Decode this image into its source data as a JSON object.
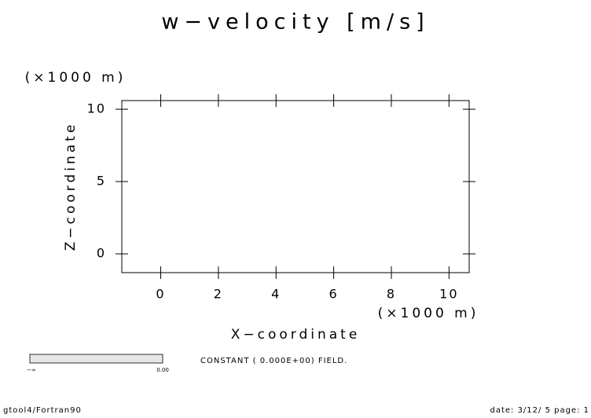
{
  "chart_data": {
    "type": "contour",
    "title": "w−velocity [m/s]",
    "xlabel": "X−coordinate",
    "ylabel": "Z−coordinate",
    "x_unit": "(×1000 m)",
    "y_unit": "(×1000 m)",
    "xlim": [
      -1.35,
      10.7
    ],
    "ylim": [
      -1.3,
      10.6
    ],
    "xticks": [
      0,
      2,
      4,
      6,
      8,
      10
    ],
    "yticks": [
      0,
      5,
      10
    ],
    "annotation": "CONSTANT ( 0.000E+00) FIELD.",
    "colorbar_labels": [
      "−∞",
      "0.00"
    ],
    "footer_left": "gtool4/Fortran90",
    "footer_right": "date: 3/12/ 5 page: 1"
  }
}
